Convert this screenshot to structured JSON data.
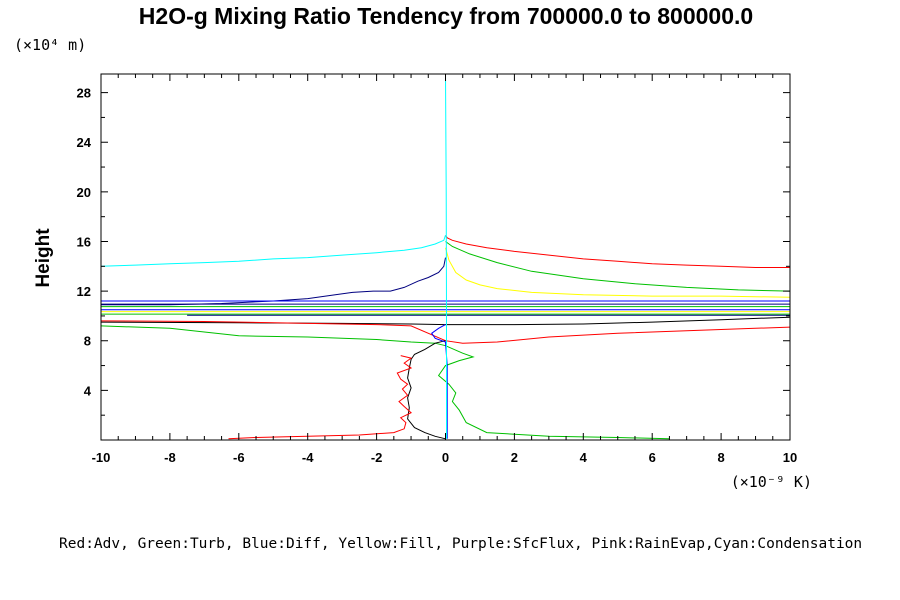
{
  "chart_data": {
    "type": "line",
    "title": "H2O-g Mixing Ratio Tendency from 700000.0 to 800000.0",
    "ylabel": "Height",
    "y_units": "(×10⁴ m)",
    "x_units": "(×10⁻⁹ K)",
    "legend_text": "Red:Adv, Green:Turb, Blue:Diff, Yellow:Fill, Purple:SfcFlux, Pink:RainEvap,Cyan:Condensation",
    "xlim": [
      -10,
      10
    ],
    "ylim": [
      0,
      29.5
    ],
    "x_ticks": [
      -10,
      -8,
      -6,
      -4,
      -2,
      0,
      2,
      4,
      6,
      8,
      10
    ],
    "x_tick_labels": [
      "-10",
      "-8",
      "-6",
      "-4",
      "-2",
      "0",
      "2",
      "4",
      "6",
      "8",
      "10"
    ],
    "y_ticks": [
      4,
      8,
      12,
      16,
      20,
      24,
      28
    ],
    "y_tick_labels": [
      "4",
      "8",
      "12",
      "16",
      "20",
      "24",
      "28"
    ],
    "grid": false,
    "series": [
      {
        "color": "#ff0000",
        "x": [
          0,
          0.05,
          0.2,
          0.6,
          1.2,
          2,
          3,
          4,
          5,
          6,
          7,
          8,
          9,
          10
        ],
        "y": [
          16.5,
          16.3,
          16.1,
          15.8,
          15.5,
          15.2,
          14.9,
          14.6,
          14.4,
          14.2,
          14.1,
          14,
          13.9,
          13.9
        ]
      },
      {
        "color": "#00c000",
        "x": [
          0,
          0.2,
          0.7,
          1.5,
          2.5,
          4,
          5.5,
          7,
          8.5,
          10
        ],
        "y": [
          16,
          15.6,
          15,
          14.3,
          13.6,
          13.0,
          12.6,
          12.3,
          12.1,
          12.0
        ]
      },
      {
        "color": "#ffff00",
        "x": [
          0,
          0.1,
          0.3,
          0.6,
          1,
          1.5,
          2.5,
          4,
          6,
          8,
          10
        ],
        "y": [
          15.5,
          14.5,
          13.5,
          12.9,
          12.5,
          12.2,
          11.9,
          11.7,
          11.6,
          11.6,
          11.5
        ]
      },
      {
        "color": "#000080",
        "x": [
          0,
          -0.05,
          -0.2,
          -0.5,
          -0.8,
          -1.2,
          -1.6,
          -2.1,
          -2.7,
          -3.2,
          -4.0,
          -5.0,
          -6.5,
          -8,
          -10
        ],
        "y": [
          14.7,
          14.0,
          13.5,
          13.1,
          12.8,
          12.3,
          12.0,
          12.0,
          11.9,
          11.7,
          11.4,
          11.2,
          11.0,
          10.9,
          10.9
        ]
      },
      {
        "color": "#00ffff",
        "x": [
          0,
          -0.05,
          -0.3,
          -0.7,
          -1.2,
          -2,
          -3,
          -4,
          -5,
          -6,
          -7,
          -8,
          -9,
          -10
        ],
        "y": [
          16.5,
          16.1,
          15.8,
          15.5,
          15.3,
          15.1,
          14.9,
          14.7,
          14.6,
          14.4,
          14.3,
          14.2,
          14.1,
          14.0
        ]
      },
      {
        "color": "#0000ff",
        "x": [
          -10,
          -6,
          -3,
          0,
          3,
          6,
          10
        ],
        "y": [
          11.2,
          11.2,
          11.2,
          11.2,
          11.2,
          11.2,
          11.2
        ]
      },
      {
        "color": "#000080",
        "x": [
          -10,
          -6,
          -3,
          0,
          3,
          6,
          10
        ],
        "y": [
          10.95,
          10.95,
          10.95,
          10.95,
          10.95,
          10.95,
          10.95
        ]
      },
      {
        "color": "#00c000",
        "x": [
          -10,
          -6,
          -3,
          0,
          3,
          6,
          10
        ],
        "y": [
          10.75,
          10.75,
          10.75,
          10.75,
          10.75,
          10.75,
          10.75
        ]
      },
      {
        "color": "#0000ff",
        "x": [
          -10,
          -6,
          -3,
          0,
          3,
          6,
          10
        ],
        "y": [
          10.5,
          10.5,
          10.5,
          10.5,
          10.5,
          10.5,
          10.5
        ]
      },
      {
        "color": "#ffff00",
        "x": [
          -10,
          -6,
          -3,
          0,
          3,
          6,
          10
        ],
        "y": [
          10.35,
          10.35,
          10.35,
          10.35,
          10.35,
          10.35,
          10.35
        ]
      },
      {
        "color": "#00c000",
        "x": [
          -10,
          -6,
          -3,
          0,
          3,
          6,
          10
        ],
        "y": [
          10.15,
          10.15,
          10.15,
          10.15,
          10.15,
          10.15,
          10.15
        ]
      },
      {
        "color": "#000080",
        "x": [
          -7.5,
          -6,
          -3,
          0,
          3,
          6,
          10
        ],
        "y": [
          10.05,
          10.05,
          10.05,
          10.05,
          10.05,
          10.05,
          10.05
        ]
      },
      {
        "color": "#000000",
        "x": [
          -10,
          -6,
          -3,
          -1,
          0,
          2,
          4,
          6,
          8,
          10
        ],
        "y": [
          9.5,
          9.45,
          9.4,
          9.35,
          9.3,
          9.3,
          9.35,
          9.5,
          9.7,
          9.9
        ]
      },
      {
        "color": "#ff0000",
        "x": [
          -10,
          -7,
          -4,
          -2,
          -1,
          0,
          0.5,
          1.5,
          3,
          5,
          7,
          9,
          10
        ],
        "y": [
          9.6,
          9.55,
          9.4,
          9.3,
          9.2,
          8.0,
          7.8,
          7.9,
          8.3,
          8.6,
          8.8,
          9.0,
          9.1
        ]
      },
      {
        "color": "#00c000",
        "x": [
          -10,
          -8,
          -6,
          -4,
          -2,
          -1,
          -0.3,
          0,
          0.5,
          0.8,
          0.4,
          0,
          -0.2,
          0.1,
          0.3,
          0.2,
          0.4,
          0.6,
          1.2,
          3,
          5,
          6.5
        ],
        "y": [
          9.2,
          9.0,
          8.4,
          8.3,
          8.1,
          7.9,
          7.8,
          7.6,
          7.0,
          6.7,
          6.4,
          6.0,
          5.2,
          4.5,
          3.8,
          3.1,
          2.4,
          1.4,
          0.6,
          0.3,
          0.2,
          0.1
        ]
      },
      {
        "color": "#000000",
        "x": [
          0,
          -0.3,
          -0.6,
          -0.9,
          -1.0,
          -1.05,
          -1.1,
          -1.0,
          -1.1,
          -1.05,
          -1.1,
          -0.9,
          -0.6,
          -0.3,
          0
        ],
        "y": [
          8.0,
          7.8,
          7.3,
          6.9,
          6.5,
          5.8,
          5.0,
          4.2,
          3.4,
          2.6,
          1.7,
          1.0,
          0.6,
          0.3,
          0.1
        ]
      },
      {
        "color": "#ff0000",
        "x": [
          -1.3,
          -1.0,
          -1.2,
          -1.0,
          -1.4,
          -1.3,
          -1.1,
          -1.25,
          -1.1,
          -1.35,
          -1.2,
          -1.0,
          -1.3,
          -1.15,
          -1.2,
          -1.5,
          -2.5,
          -4,
          -5.5,
          -6.3
        ],
        "y": [
          6.8,
          6.6,
          6.2,
          5.8,
          5.4,
          4.9,
          4.5,
          4.1,
          3.6,
          3.1,
          2.7,
          2.2,
          1.8,
          1.4,
          0.9,
          0.6,
          0.4,
          0.3,
          0.2,
          0.1
        ]
      },
      {
        "color": "#0000ff",
        "x": [
          0,
          -0.2,
          -0.4,
          -0.3,
          0,
          0.05,
          0.05,
          0.05
        ],
        "y": [
          9.3,
          9.0,
          8.6,
          8.2,
          7.9,
          6.0,
          3.0,
          0.1
        ]
      },
      {
        "color": "#00ffff",
        "x": [
          0,
          0.02,
          0.03,
          0.03,
          0.03
        ],
        "y": [
          29.5,
          20,
          10,
          5,
          0.1
        ]
      }
    ]
  }
}
